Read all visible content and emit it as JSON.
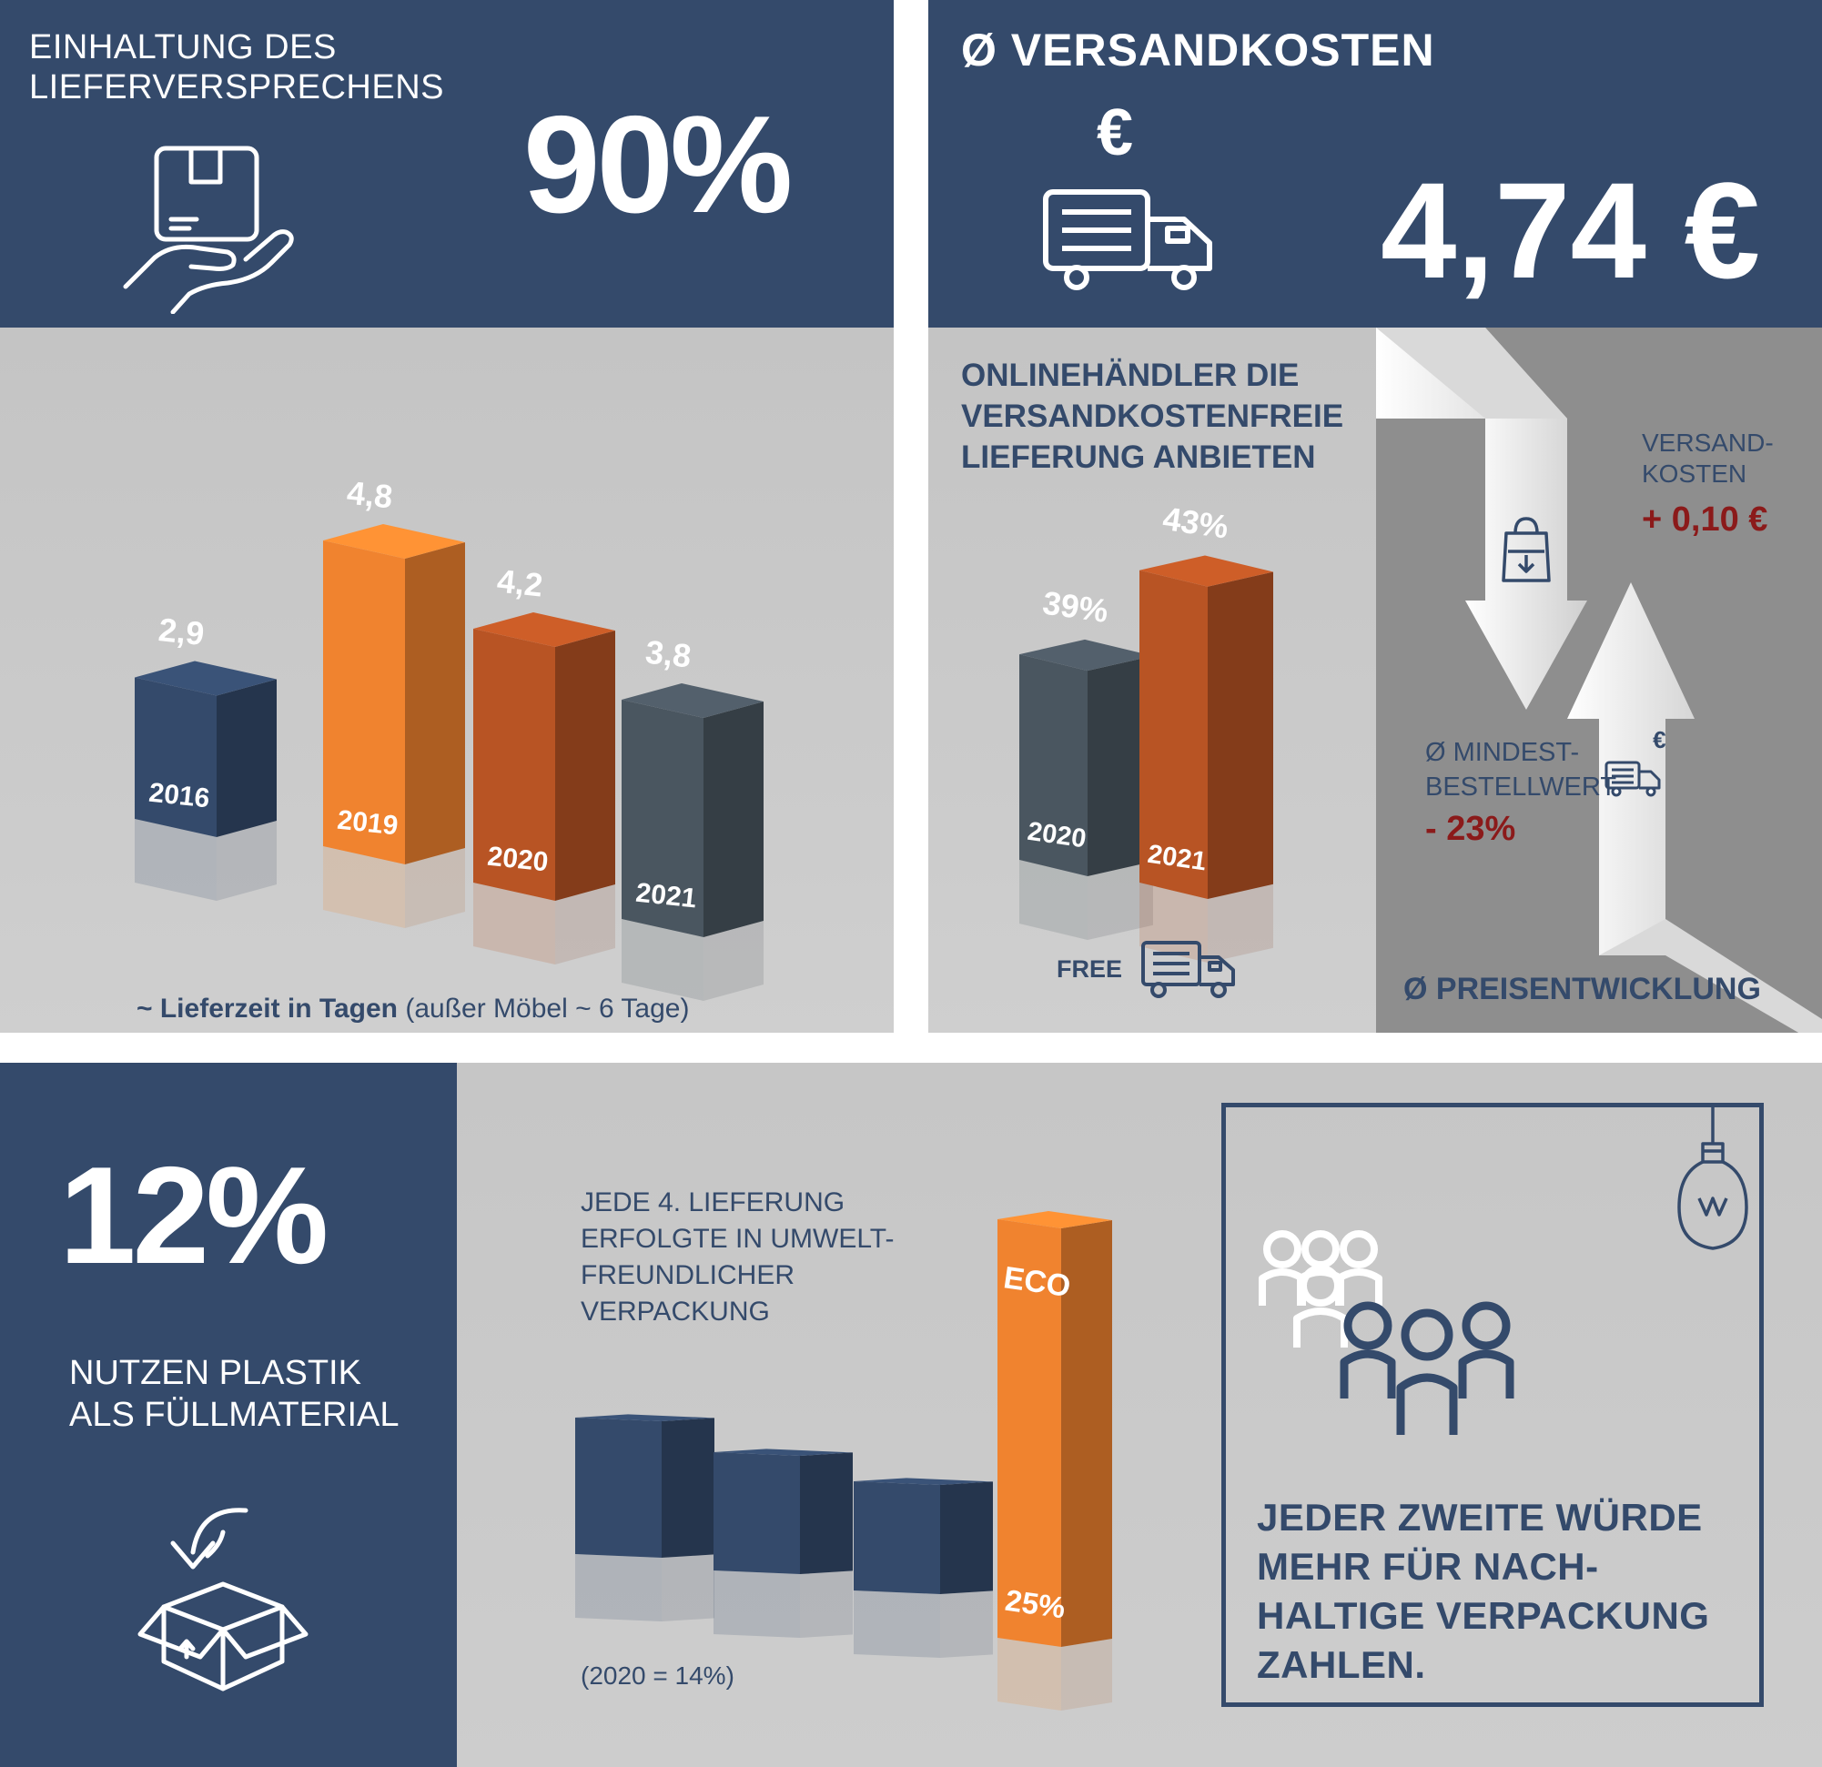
{
  "delivery_promise": {
    "title_line1": "EINHALTUNG DES",
    "title_line2": "LIEFERVERSPRECHENS",
    "value": "90%"
  },
  "shipping_cost": {
    "title": "Ø VERSANDKOSTEN",
    "currency_symbol": "€",
    "value": "4,74 €"
  },
  "free_shipping": {
    "title_line1": "ONLINEHÄNDLER DIE",
    "title_line2": "VERSANDKOSTENFREIE",
    "title_line3": "LIEFERUNG ANBIETEN",
    "free_label": "FREE"
  },
  "price_development": {
    "title": "Ø  PREISENTWICKLUNG",
    "versand_line1": "VERSAND-",
    "versand_line2": "KOSTEN",
    "versand_value": "+ 0,10 €",
    "mindest_line1": "Ø MINDEST-",
    "mindest_line2": "BESTELLWERT",
    "mindest_value": "- 23%",
    "euro_symbol": "€",
    "down_color": "#e8e8e8",
    "accent_red": "#8b1a1a"
  },
  "plastic": {
    "value": "12%",
    "line1": "NUTZEN PLASTIK",
    "line2": "ALS FÜLLMATERIAL"
  },
  "eco": {
    "text_line1": "JEDE 4. LIEFERUNG",
    "text_line2": "ERFOLGTE IN UMWELT-",
    "text_line3": "FREUNDLICHER",
    "text_line4": "VERPACKUNG",
    "footnote": "(2020 = 14%)"
  },
  "sustainable": {
    "line1": "JEDER ZWEITE WÜRDE",
    "line2": "MEHR FÜR NACH-",
    "line3": "HALTIGE VERPACKUNG",
    "line4": "ZAHLEN."
  },
  "colors": {
    "navy": "#344a6b",
    "grey": "#c8c8c8",
    "orange": "#e0702a",
    "dark_orange": "#b85424",
    "slate": "#4a5660"
  },
  "chart_data": [
    {
      "type": "bar",
      "categories": [
        "2016",
        "2019",
        "2020",
        "2021"
      ],
      "values": [
        2.9,
        4.8,
        4.2,
        3.8
      ],
      "value_labels": [
        "2,9",
        "4,8",
        "4,2",
        "3,8"
      ],
      "colors": [
        "#344a6b",
        "#f0832f",
        "#b85424",
        "#4a5660"
      ],
      "xlabel_bold": "~ Lieferzeit in Tagen",
      "xlabel_rest": " (außer Möbel ~ 6 Tage)"
    },
    {
      "type": "bar",
      "categories": [
        "2020",
        "2021"
      ],
      "values": [
        39,
        43
      ],
      "value_labels": [
        "39%",
        "43%"
      ],
      "colors": [
        "#4a5660",
        "#b85424"
      ]
    },
    {
      "type": "bar",
      "categories": [
        "ECO"
      ],
      "values": [
        25
      ],
      "value_labels": [
        "25%"
      ],
      "colors": [
        "#344a6b",
        "#344a6b",
        "#344a6b",
        "#f0832f"
      ]
    }
  ]
}
